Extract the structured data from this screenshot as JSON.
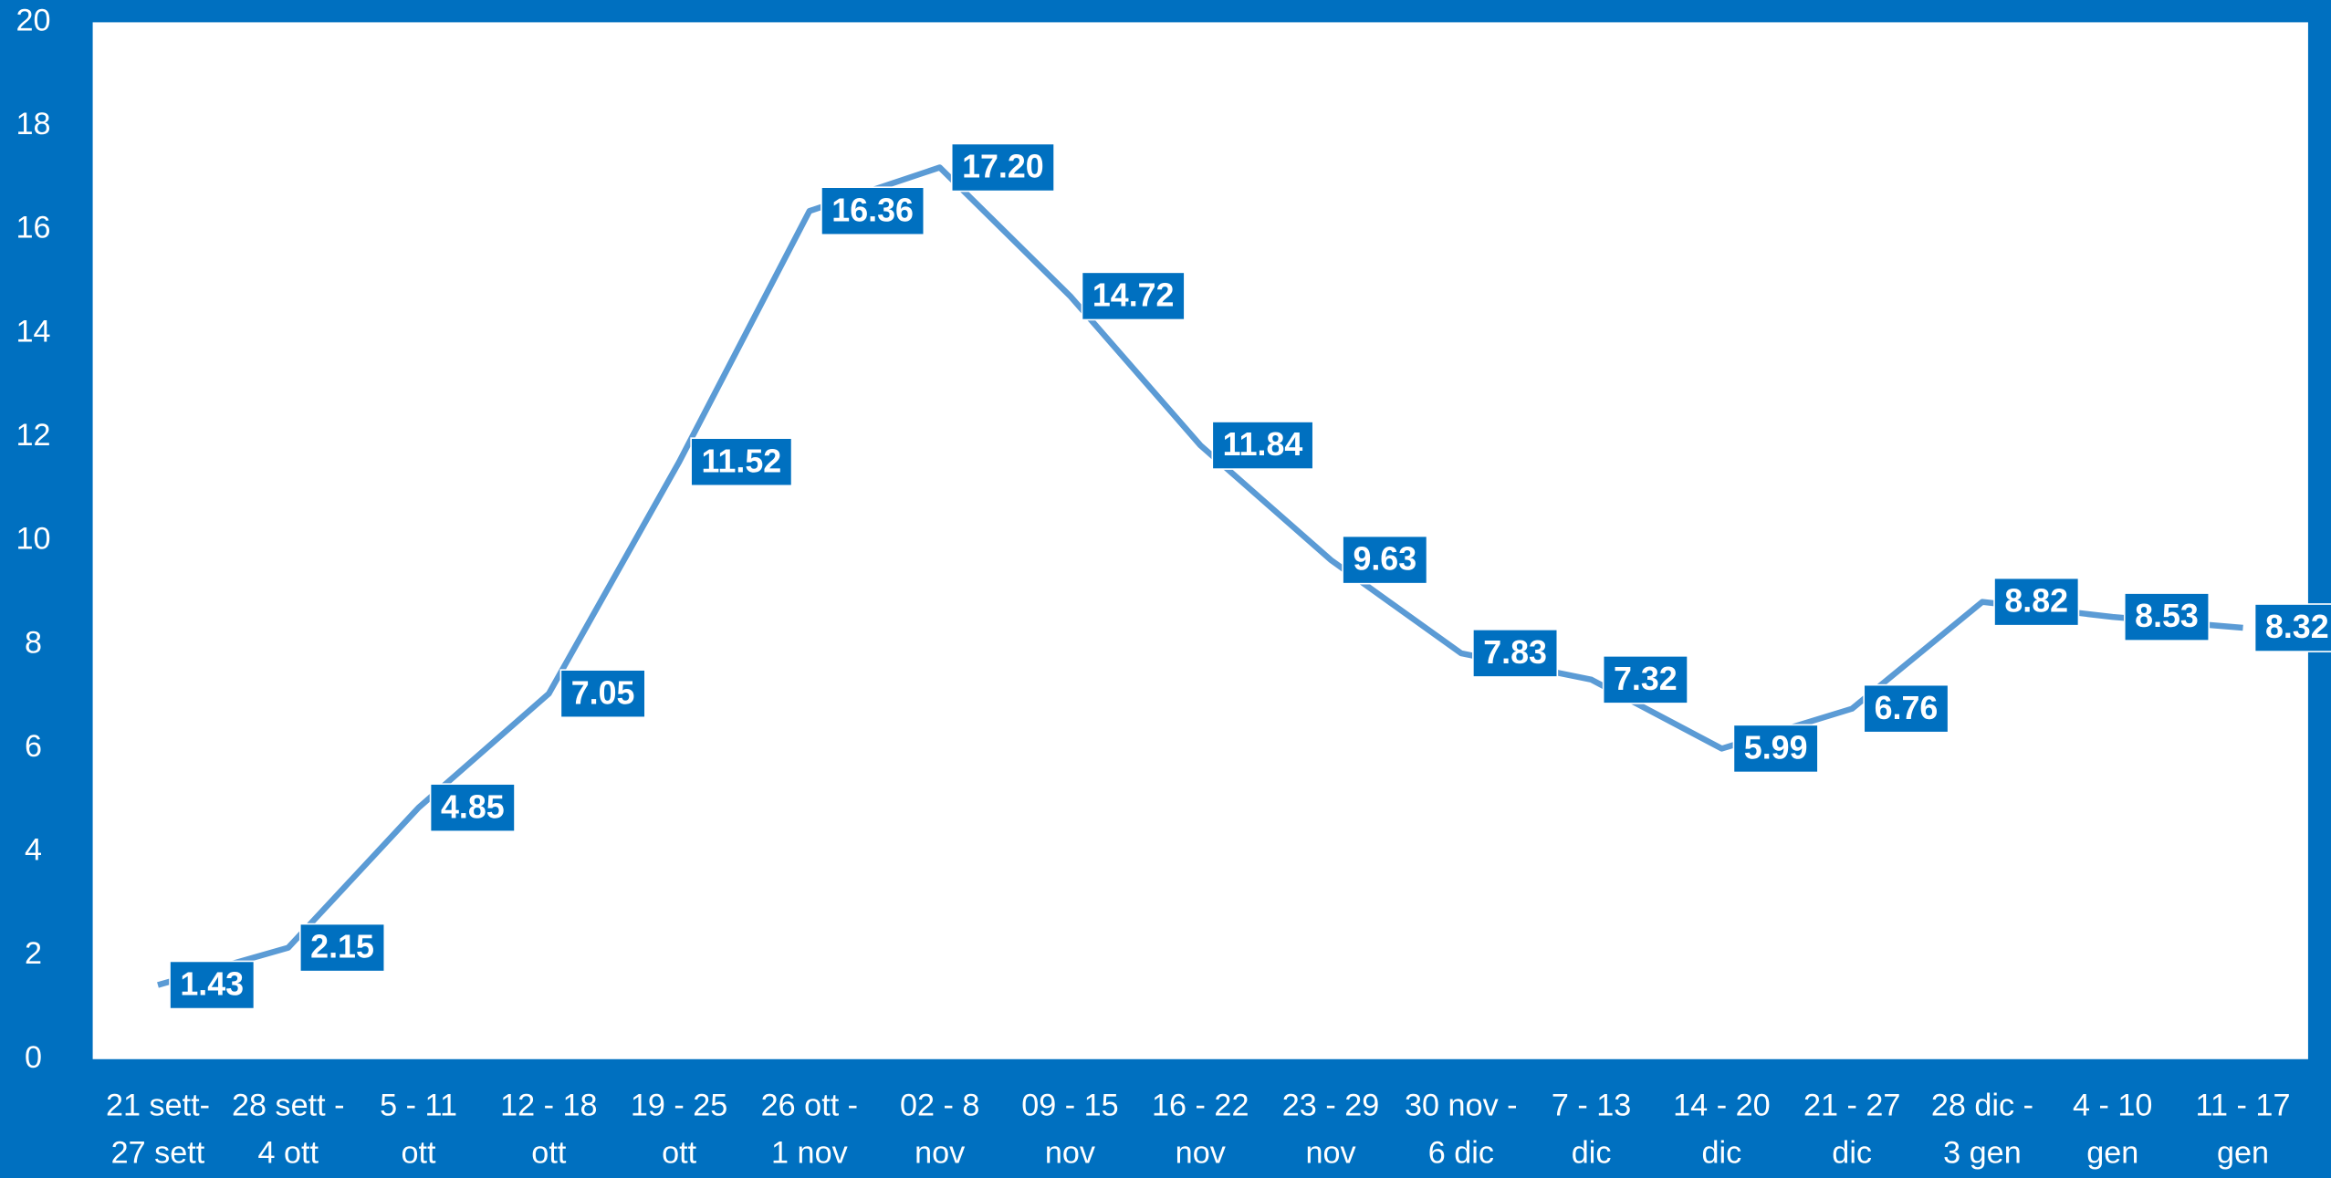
{
  "chart_data": {
    "type": "line",
    "categories": [
      "21 sett-\n27 sett",
      "28 sett -\n4 ott",
      "5 - 11\nott",
      "12 - 18\nott",
      "19 - 25\nott",
      "26 ott -\n1 nov",
      "02 - 8\nnov",
      "09 - 15\nnov",
      "16 - 22\nnov",
      "23 - 29\nnov",
      "30 nov -\n6 dic",
      "7 - 13\ndic",
      "14 - 20\ndic",
      "21 - 27\ndic",
      "28 dic -\n3 gen",
      "4 - 10\ngen",
      "11 - 17\ngen"
    ],
    "series": [
      {
        "color": "#5b9bd5",
        "values": [
          1.43,
          2.15,
          4.85,
          7.05,
          11.52,
          16.36,
          17.2,
          14.72,
          11.84,
          9.63,
          7.83,
          7.32,
          5.99,
          6.76,
          8.82,
          8.53,
          8.32
        ],
        "value_labels": [
          "1.43",
          "2.15",
          "4.85",
          "7.05",
          "11.52",
          "16.36",
          "17.20",
          "14.72",
          "11.84",
          "9.63",
          "7.83",
          "7.32",
          "5.99",
          "6.76",
          "8.82",
          "8.53",
          "8.32"
        ]
      }
    ],
    "ylim": [
      0,
      20
    ],
    "yticks": [
      0,
      2,
      4,
      6,
      8,
      10,
      12,
      14,
      16,
      18,
      20
    ]
  }
}
